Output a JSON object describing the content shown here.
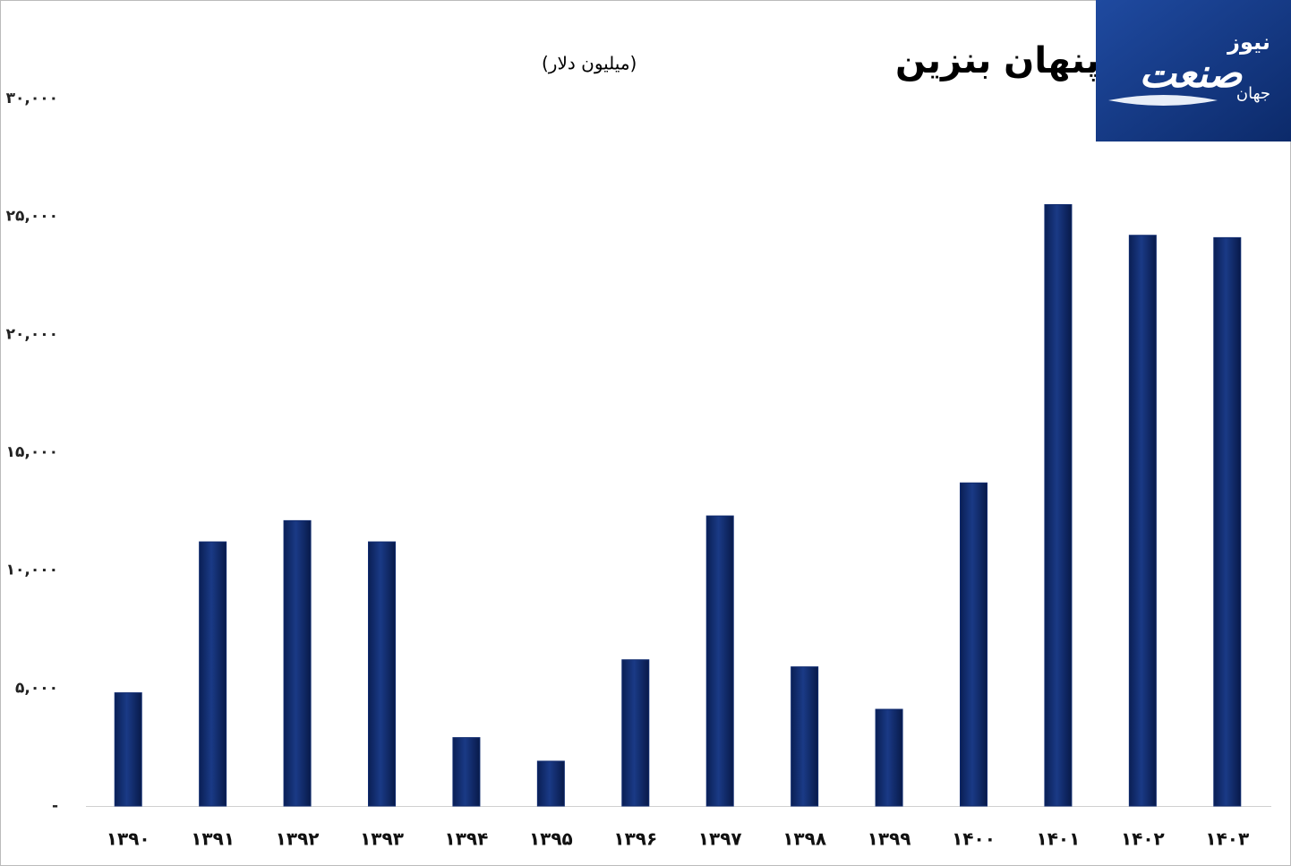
{
  "chart_data": {
    "type": "bar",
    "title": "یارانه پنهان بنزین",
    "subtitle": "(میلیون دلار)",
    "categories": [
      "۱۳۹۰",
      "۱۳۹۱",
      "۱۳۹۲",
      "۱۳۹۳",
      "۱۳۹۴",
      "۱۳۹۵",
      "۱۳۹۶",
      "۱۳۹۷",
      "۱۳۹۸",
      "۱۳۹۹",
      "۱۴۰۰",
      "۱۴۰۱",
      "۱۴۰۲",
      "۱۴۰۳"
    ],
    "values": [
      4800,
      11200,
      12100,
      11200,
      2900,
      1900,
      6200,
      12300,
      5900,
      4100,
      13700,
      25500,
      24200,
      24100
    ],
    "color": "#0f2a6e",
    "ylim": [
      0,
      30000
    ],
    "yticks": [
      {
        "value": 0,
        "label": "-"
      },
      {
        "value": 5000,
        "label": "۵,۰۰۰"
      },
      {
        "value": 10000,
        "label": "۱۰,۰۰۰"
      },
      {
        "value": 15000,
        "label": "۱۵,۰۰۰"
      },
      {
        "value": 20000,
        "label": "۲۰,۰۰۰"
      },
      {
        "value": 25000,
        "label": "۲۵,۰۰۰"
      },
      {
        "value": 30000,
        "label": "۳۰,۰۰۰"
      }
    ],
    "grid": false,
    "logo": {
      "main": "صنعت",
      "top": "نیوز",
      "side": "جهان"
    }
  }
}
